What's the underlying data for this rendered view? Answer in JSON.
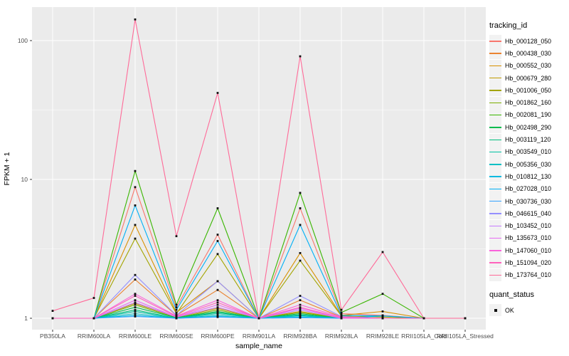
{
  "axes": {
    "x_title": "sample_name",
    "y_title": "FPKM + 1"
  },
  "legend": {
    "tracking_title": "tracking_id",
    "quant_title": "quant_status",
    "quant_items": [
      {
        "label": "OK",
        "marker": "black-square"
      }
    ]
  },
  "colors": {
    "panel_bg": "#EBEBEB",
    "grid": "#FFFFFF",
    "tick": "#333333",
    "tick_label": "#4D4D4D",
    "axis_title": "#000000",
    "marker": "#111111",
    "legend_key_bg": "#F2F2F2"
  },
  "chart_data": {
    "type": "line",
    "title": "",
    "xlabel": "sample_name",
    "ylabel": "FPKM + 1",
    "y_scale": "log10",
    "ylim": [
      0.83,
      173
    ],
    "y_ticks": [
      1,
      10,
      100
    ],
    "y_minor_ticks": [
      3.162,
      31.62
    ],
    "grid": true,
    "legend_position": "right",
    "point_marker": "small black square (quant_status = OK)",
    "categories": [
      "PB350LA",
      "RRIM600LA",
      "RRIM600LE",
      "RRIM600SE",
      "RRIM600PE",
      "RRIM901LA",
      "RRIM928BA",
      "RRIM928LA",
      "RRIM928LE",
      "RRII105LA_Cold",
      "RRII105LA_Stressed"
    ],
    "series": [
      {
        "name": "Hb_000128_050",
        "color": "#F8766D",
        "values": [
          1,
          1,
          8.8,
          1.2,
          4.0,
          1,
          6.2,
          1.08,
          1.05,
          1,
          1
        ]
      },
      {
        "name": "Hb_000438_030",
        "color": "#EA8331",
        "values": [
          1,
          1,
          1.9,
          1.05,
          1.6,
          1,
          1.35,
          1.02,
          1,
          1,
          1
        ]
      },
      {
        "name": "Hb_000552_030",
        "color": "#D89000",
        "values": [
          1,
          1,
          4.7,
          1.1,
          1.85,
          1,
          2.95,
          1.05,
          1.12,
          1,
          1
        ]
      },
      {
        "name": "Hb_000679_280",
        "color": "#C09B00",
        "values": [
          1,
          1,
          1.28,
          1.02,
          1.18,
          1,
          1.12,
          1,
          1,
          1,
          1
        ]
      },
      {
        "name": "Hb_001006_050",
        "color": "#A3A500",
        "values": [
          1,
          1,
          3.75,
          1.08,
          2.9,
          1,
          2.6,
          1.04,
          1.02,
          1,
          1
        ]
      },
      {
        "name": "Hb_001862_160",
        "color": "#7CAE00",
        "values": [
          1,
          1,
          1.25,
          1.01,
          1.15,
          1,
          1.1,
          1,
          1,
          1,
          1
        ]
      },
      {
        "name": "Hb_002081_190",
        "color": "#39B600",
        "values": [
          1,
          1,
          11.5,
          1.25,
          6.2,
          1,
          8.0,
          1.1,
          1.5,
          1,
          1
        ]
      },
      {
        "name": "Hb_002498_290",
        "color": "#00BB4E",
        "values": [
          1,
          1,
          1.2,
          1.01,
          1.12,
          1,
          1.08,
          1,
          1,
          1,
          1
        ]
      },
      {
        "name": "Hb_003119_120",
        "color": "#00BF7D",
        "values": [
          1,
          1,
          1.15,
          1,
          1.1,
          1,
          1.06,
          1,
          1,
          1,
          1
        ]
      },
      {
        "name": "Hb_003549_010",
        "color": "#00C1A3",
        "values": [
          1,
          1,
          1.12,
          1,
          1.08,
          1,
          1.05,
          1,
          1,
          1,
          1
        ]
      },
      {
        "name": "Hb_005356_030",
        "color": "#00BFC4",
        "values": [
          1,
          1,
          1.08,
          1,
          1.05,
          1,
          1.04,
          1,
          1,
          1,
          1
        ]
      },
      {
        "name": "Hb_010812_130",
        "color": "#00BAE0",
        "values": [
          1,
          1,
          1.05,
          1,
          1.03,
          1,
          1.02,
          1,
          1.04,
          1,
          1
        ]
      },
      {
        "name": "Hb_027028_010",
        "color": "#00B0F6",
        "values": [
          1,
          1,
          6.5,
          1.15,
          3.6,
          1,
          4.7,
          1.05,
          1.04,
          1,
          1
        ]
      },
      {
        "name": "Hb_030736_030",
        "color": "#35A2FF",
        "values": [
          1,
          1,
          1.03,
          1,
          1.02,
          1,
          1.01,
          1,
          1,
          1,
          1
        ]
      },
      {
        "name": "Hb_046615_040",
        "color": "#9590FF",
        "values": [
          1,
          1,
          2.05,
          1.05,
          1.85,
          1,
          1.45,
          1.03,
          1,
          1,
          1
        ]
      },
      {
        "name": "Hb_103452_010",
        "color": "#C77CFF",
        "values": [
          1,
          1,
          1.3,
          1.02,
          1.2,
          1,
          1.15,
          1,
          1,
          1,
          1
        ]
      },
      {
        "name": "Hb_135673_010",
        "color": "#E76BF3",
        "values": [
          1,
          1,
          1.35,
          1.02,
          1.25,
          1,
          1.18,
          1,
          1,
          1,
          1
        ]
      },
      {
        "name": "Hb_147060_010",
        "color": "#FA62DB",
        "values": [
          1,
          1,
          1.5,
          1.04,
          1.35,
          1,
          1.25,
          1.02,
          1,
          1,
          1
        ]
      },
      {
        "name": "Hb_151094_020",
        "color": "#FF62BC",
        "values": [
          1,
          1,
          1.45,
          1.03,
          1.3,
          1,
          1.2,
          1.01,
          1,
          1,
          1
        ]
      },
      {
        "name": "Hb_173764_010",
        "color": "#FF6A98",
        "values": [
          1.13,
          1.4,
          142,
          3.9,
          42,
          1,
          77,
          1.15,
          3.0,
          1,
          1
        ]
      }
    ]
  }
}
